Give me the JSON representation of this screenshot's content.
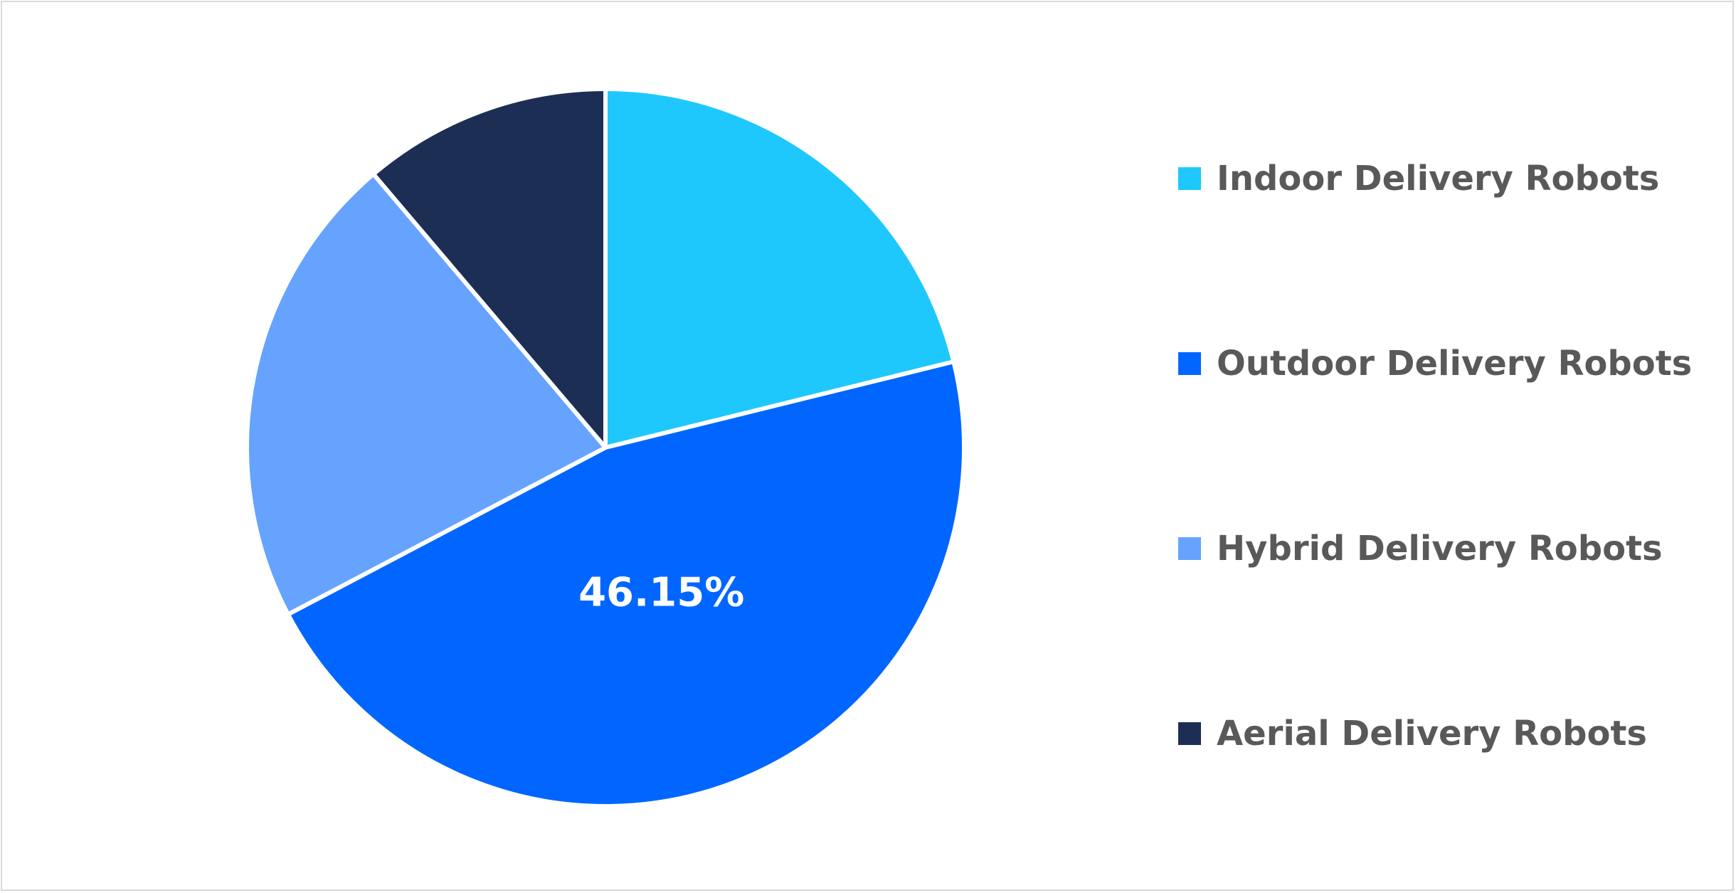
{
  "chart_data": {
    "type": "pie",
    "title": "",
    "categories": [
      "Indoor Delivery Robots",
      "Outdoor Delivery Robots",
      "Hybrid Delivery Robots",
      "Aerial Delivery Robots"
    ],
    "values": [
      21.15,
      46.15,
      21.5,
      11.2
    ],
    "unit": "%",
    "colors": [
      "#1fc8fc",
      "#0066ff",
      "#66a3ff",
      "#1c2e54"
    ],
    "data_labels": [
      "",
      "46.15%",
      "",
      ""
    ],
    "start_angle_deg": 0,
    "direction": "clockwise",
    "legend": {
      "position": "right"
    }
  }
}
